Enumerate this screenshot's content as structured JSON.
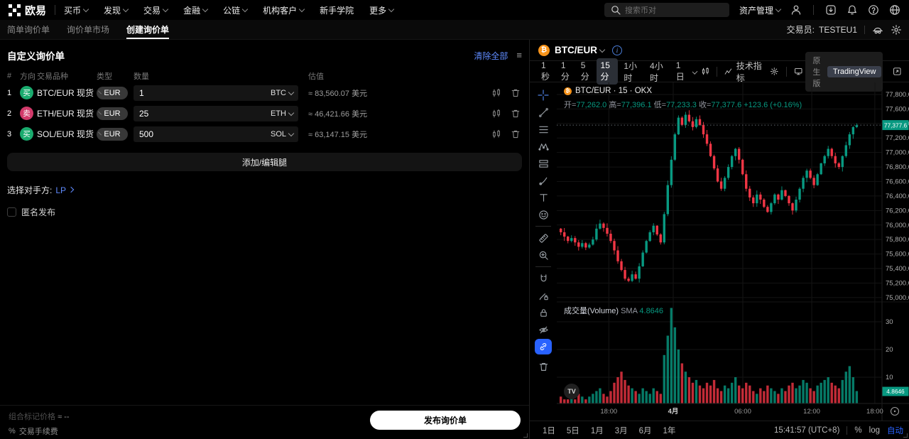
{
  "topnav": {
    "brand": "欧易",
    "menus": [
      {
        "label": "买币",
        "caret": true
      },
      {
        "label": "发现",
        "caret": true
      },
      {
        "label": "交易",
        "caret": true
      },
      {
        "label": "金融",
        "caret": true
      },
      {
        "label": "公链",
        "caret": true
      },
      {
        "label": "机构客户",
        "caret": true
      },
      {
        "label": "新手学院",
        "caret": false
      },
      {
        "label": "更多",
        "caret": true
      }
    ],
    "search_placeholder": "搜索币对",
    "asset_mgmt": "资产管理"
  },
  "subnav": {
    "tabs": [
      {
        "label": "简单询价单",
        "active": false
      },
      {
        "label": "询价单市场",
        "active": false
      },
      {
        "label": "创建询价单",
        "active": true
      }
    ],
    "trader_label": "交易员:",
    "trader_value": "TESTEU1"
  },
  "panel": {
    "title": "自定义询价单",
    "clear_all": "清除全部",
    "table": {
      "headers": [
        "#",
        "方向",
        "交易品种",
        "类型",
        "数量",
        "估值"
      ],
      "rows": [
        {
          "index": "1",
          "side": "买",
          "side_color": "#1aab6e",
          "pair": "BTC/EUR 现货",
          "type": "EUR",
          "qty": "1",
          "unit": "BTC",
          "value": "≈ 83,560.07 美元"
        },
        {
          "index": "2",
          "side": "卖",
          "side_color": "#d23a6a",
          "pair": "ETH/EUR 现货",
          "type": "EUR",
          "qty": "25",
          "unit": "ETH",
          "value": "≈ 46,421.66 美元"
        },
        {
          "index": "3",
          "side": "买",
          "side_color": "#1aab6e",
          "pair": "SOL/EUR 现货",
          "type": "EUR",
          "qty": "500",
          "unit": "SOL",
          "value": "≈ 63,147.15 美元"
        }
      ]
    },
    "add_leg": "添加/编辑腿",
    "counterparty_label": "选择对手方:",
    "counterparty_value": "LP",
    "anonymous_label": "匿名发布",
    "footer": {
      "mark_price_label": "组合标记价格",
      "mark_price_value": "≈ --",
      "fee_symbol": "%",
      "fee_label": "交易手续费",
      "publish": "发布询价单"
    }
  },
  "chart": {
    "symbol": "BTC/EUR",
    "timeframes": [
      "1秒",
      "1分",
      "5分",
      "15分",
      "1小时",
      "4小时",
      "1日"
    ],
    "selected_timeframe": "15分",
    "indicators_label": "技术指标",
    "toggle_native": "原生版",
    "toggle_tradingview": "TradingView",
    "legend_title": "BTC/EUR · 15 · OKX",
    "ohlc_pairs": [
      {
        "k": "开",
        "v": "77,262.0"
      },
      {
        "k": "高",
        "v": "77,396.1"
      },
      {
        "k": "低",
        "v": "77,233.3"
      },
      {
        "k": "收",
        "v": "77,377.6"
      }
    ],
    "change_text": "+123.6 (+0.16%)",
    "volume_label": "成交量(Volume)",
    "sma_label": "SMA",
    "sma_value": "4.8646",
    "price_badge": "77,377.6",
    "vol_badge": "4.8646",
    "watermark": "TV",
    "ranges": [
      "1日",
      "5日",
      "1月",
      "3月",
      "6月",
      "1年"
    ],
    "clock": "15:41:57 (UTC+8)",
    "percent_label": "%",
    "log_label": "log",
    "auto_label": "自动"
  },
  "chart_data": {
    "type": "candlestick",
    "symbol": "BTC/EUR",
    "exchange": "OKX",
    "interval_minutes": 15,
    "title": "BTC/EUR · 15 · OKX",
    "last_ohlc": {
      "open": 77262.0,
      "high": 77396.1,
      "low": 77233.3,
      "close": 77377.6,
      "change": 123.6,
      "change_pct": 0.16
    },
    "price_line": 77377.6,
    "vol_sma": 4.8646,
    "ylim": [
      74940,
      77966
    ],
    "vol_ylim": [
      0,
      40
    ],
    "up_color": "#089981",
    "down_color": "#f23645",
    "price_ticks": [
      77800,
      77600,
      77400,
      77200,
      77000,
      76800,
      76600,
      76400,
      76200,
      76000,
      75800,
      75600,
      75400,
      75200,
      75000
    ],
    "vol_ticks": [
      10,
      20,
      30
    ],
    "time_labels": [
      {
        "label": "18:00",
        "f": 0.16,
        "strong": false
      },
      {
        "label": "4月",
        "f": 0.358,
        "strong": true
      },
      {
        "label": "06:00",
        "f": 0.572,
        "strong": false
      },
      {
        "label": "12:00",
        "f": 0.784,
        "strong": false
      },
      {
        "label": "18:00",
        "f": 0.978,
        "strong": false
      }
    ],
    "open_first": 75950,
    "closes": [
      75900,
      75840,
      75780,
      75820,
      75760,
      75700,
      75750,
      75690,
      75730,
      75800,
      75950,
      76020,
      75960,
      75880,
      75780,
      75650,
      75500,
      75380,
      75260,
      75230,
      75320,
      75260,
      75430,
      75620,
      75780,
      75900,
      75990,
      75870,
      75760,
      76150,
      76550,
      76900,
      77250,
      77480,
      77380,
      77520,
      77430,
      77350,
      77460,
      77380,
      77250,
      77120,
      76950,
      76780,
      76600,
      76500,
      76650,
      76800,
      76950,
      77050,
      76900,
      76700,
      76500,
      76380,
      76300,
      76420,
      76350,
      76250,
      76180,
      76300,
      76420,
      76350,
      76480,
      76400,
      76300,
      76200,
      76350,
      76500,
      76650,
      76750,
      76650,
      76550,
      76700,
      76850,
      76950,
      77050,
      76950,
      76850,
      76800,
      76950,
      77100,
      77250,
      77350,
      77377.6
    ],
    "volumes": [
      3,
      2,
      2,
      3,
      2,
      4,
      3,
      2,
      3,
      4,
      5,
      6,
      4,
      3,
      5,
      8,
      10,
      12,
      9,
      7,
      6,
      5,
      4,
      6,
      5,
      4,
      6,
      5,
      4,
      18,
      25,
      35,
      28,
      20,
      15,
      12,
      10,
      8,
      9,
      7,
      6,
      8,
      7,
      9,
      6,
      5,
      7,
      6,
      8,
      10,
      7,
      6,
      8,
      7,
      5,
      4,
      6,
      5,
      7,
      6,
      5,
      4,
      6,
      5,
      7,
      8,
      6,
      7,
      9,
      8,
      6,
      5,
      7,
      8,
      9,
      10,
      8,
      7,
      6,
      9,
      12,
      14,
      10,
      5
    ]
  }
}
